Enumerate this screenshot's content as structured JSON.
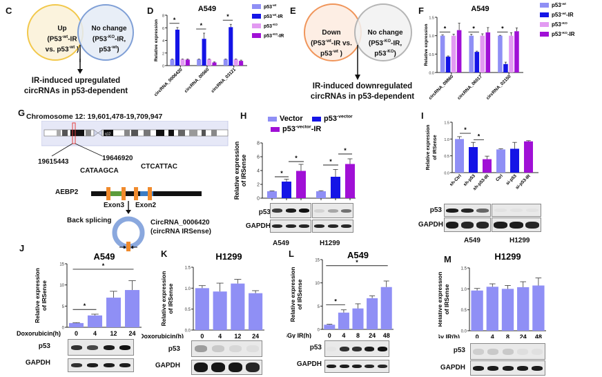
{
  "panel_labels": {
    "C": "C",
    "D": "D",
    "E": "E",
    "F": "F",
    "G": "G",
    "H": "H",
    "I": "I",
    "J": "J",
    "K": "K",
    "L": "L",
    "M": "M"
  },
  "colors": {
    "p53_wt": "#8f8ff5",
    "p53_wt_ir": "#1414e6",
    "p53_ko": "#e29af2",
    "p53_ko_ir": "#a010d6",
    "venn_up": "#f2c84b",
    "venn_nochange": "#7f9fd6",
    "venn_down": "#f0955a",
    "venn_gray": "#b5b5b5",
    "circ": "#8aa8de",
    "exon": "#f08a2c"
  },
  "venn_c": {
    "left_title": "Up",
    "left_sub1": "(P53",
    "left_sup1": "-wt",
    "left_sub1b": "-IR",
    "left_sub2": "vs. p53",
    "left_sup2": "-wt",
    "left_sub2b": " )",
    "right_title": "No change",
    "right_sub1": "(P53",
    "right_sup1": "-KO",
    "right_sub1b": "-IR,",
    "right_sub2": "p53",
    "right_sup2": "-wt",
    "right_sub2b": ")",
    "caption_line1": "IR-induced upregulated",
    "caption_line2": "circRNAs in p53-dependent"
  },
  "venn_e": {
    "left_title": "Down",
    "left_sub1": "(P53",
    "left_sup1": "-wt",
    "left_sub1b": "-IR vs.",
    "left_sub2": "p53",
    "left_sup2": "-wt",
    "left_sub2b": " )",
    "right_title": "No change",
    "right_sub1": "(P53",
    "right_sup1": "-KO",
    "right_sub1b": "-IR,",
    "right_sub2": "p53",
    "right_sup2": "-KO",
    "right_sub2b": ")",
    "caption_line1": "IR-induced downregulated",
    "caption_line2": "circRNAs in p53-dependent"
  },
  "panel_g": {
    "chromosome": "Chromosome 12: 19,601,478-19,709,947",
    "band_label": "q12",
    "start": "19615443",
    "end": "19646920",
    "seq_left": "CATAAGCA",
    "seq_right": "CTCATTAC",
    "gene": "AEBP2",
    "exon3": "Exon3",
    "exon2": "Exon2",
    "back_splicing": "Back splicing",
    "circ_name": "CircRNA_0006420",
    "circ_alias": "(circRNA IRSense)"
  },
  "blots": {
    "p53": "p53",
    "gapdh": "GAPDH",
    "a549": "A549",
    "h1299": "H1299"
  },
  "chart_data": [
    {
      "id": "D",
      "type": "bar",
      "title": "A549",
      "ylabel": "Relative expression",
      "ylim": [
        0,
        8
      ],
      "yticks": [
        "0",
        "2",
        "4",
        "6",
        "8"
      ],
      "categories": [
        "circRNA_0006420",
        "circRNA_00560",
        "circRNA_03121"
      ],
      "legend_position": "right",
      "series": [
        {
          "name": "p53",
          "sup": "-wt",
          "suffix": "",
          "color_key": "p53_wt",
          "values": [
            1.0,
            1.0,
            1.0
          ],
          "errors": [
            0.05,
            0.05,
            0.05
          ]
        },
        {
          "name": "p53",
          "sup": "-wt",
          "suffix": "-IR",
          "color_key": "p53_wt_ir",
          "values": [
            5.7,
            4.25,
            6.1
          ],
          "errors": [
            0.35,
            0.9,
            0.45
          ]
        },
        {
          "name": "p53",
          "sup": "-KO",
          "suffix": "",
          "color_key": "p53_ko",
          "values": [
            1.0,
            1.0,
            1.0
          ],
          "errors": [
            0.05,
            0.05,
            0.05
          ]
        },
        {
          "name": "p53",
          "sup": "-KO",
          "suffix": "-IR",
          "color_key": "p53_ko_ir",
          "values": [
            0.95,
            0.5,
            0.75
          ],
          "errors": [
            0.1,
            0.08,
            0.12
          ]
        }
      ],
      "significance": [
        "*",
        "*",
        "*"
      ]
    },
    {
      "id": "F",
      "type": "bar",
      "title": "A549",
      "ylabel": "Relative expression",
      "ylim": [
        0,
        1.5
      ],
      "yticks": [
        "0.0",
        "0.5",
        "1.0",
        "1.5"
      ],
      "categories": [
        "circRNA_09860",
        "circRNA_06017",
        "circRNA_02150"
      ],
      "legend_position": "right",
      "series": [
        {
          "name": "p53",
          "sup": "-wt",
          "suffix": "",
          "color_key": "p53_wt",
          "values": [
            1.0,
            1.0,
            1.0
          ],
          "errors": [
            0.02,
            0.04,
            0.01
          ]
        },
        {
          "name": "p53",
          "sup": "-wt",
          "suffix": "-IR",
          "color_key": "p53_wt_ir",
          "values": [
            0.43,
            0.56,
            0.23
          ],
          "errors": [
            0.02,
            0.02,
            0.05
          ]
        },
        {
          "name": "p53",
          "sup": "-KO",
          "suffix": "",
          "color_key": "p53_ko",
          "values": [
            1.0,
            1.0,
            1.0
          ],
          "errors": [
            0.04,
            0.05,
            0.08
          ]
        },
        {
          "name": "p53",
          "sup": "-KO",
          "suffix": "-IR",
          "color_key": "p53_ko_ir",
          "values": [
            1.15,
            1.09,
            1.12
          ],
          "errors": [
            0.19,
            0.13,
            0.09
          ]
        }
      ],
      "significance": [
        "*",
        "*",
        "*"
      ]
    },
    {
      "id": "H",
      "type": "bar",
      "title": "",
      "ylabel": "Relative expression of IRSense",
      "ylabel_line1": "Relative expression",
      "ylabel_line2": "of IRSense",
      "ylim": [
        0,
        8
      ],
      "yticks": [
        "0",
        "2",
        "4",
        "6",
        "8"
      ],
      "groups": [
        "A549",
        "H1299"
      ],
      "legend": [
        {
          "name": "Vector",
          "sup": "",
          "suffix": "",
          "color_key": "p53_wt"
        },
        {
          "name": "p53",
          "sup": "-vector",
          "suffix": "",
          "color_key": "p53_wt_ir"
        },
        {
          "name": "p53",
          "sup": "-vector",
          "suffix": "-IR",
          "color_key": "p53_ko_ir"
        }
      ],
      "bars": [
        {
          "group": "A549",
          "series": "Vector",
          "color_key": "p53_wt",
          "value": 1.0,
          "error": 0.05
        },
        {
          "group": "A549",
          "series": "p53-vector",
          "color_key": "p53_wt_ir",
          "value": 2.4,
          "error": 0.35
        },
        {
          "group": "A549",
          "series": "p53-vector-IR",
          "color_key": "p53_ko_ir",
          "value": 3.95,
          "error": 0.95
        },
        {
          "group": "H1299",
          "series": "Vector",
          "color_key": "p53_wt",
          "value": 1.0,
          "error": 0.08
        },
        {
          "group": "H1299",
          "series": "p53-vector",
          "color_key": "p53_wt_ir",
          "value": 3.1,
          "error": 1.05
        },
        {
          "group": "H1299",
          "series": "p53-vector-IR",
          "color_key": "p53_ko_ir",
          "value": 4.95,
          "error": 0.75
        }
      ],
      "significance": [
        "*",
        "*",
        "*",
        "*"
      ]
    },
    {
      "id": "I",
      "type": "bar",
      "title": "",
      "ylabel_line1": "Relative expression",
      "ylabel_line2": "of IRSense",
      "ylim": [
        0,
        1.5
      ],
      "yticks": [
        "0.0",
        "0.5",
        "1.0",
        "1.5"
      ],
      "categories": [
        "sh-Ctrl",
        "sh-p53",
        "sh-p53-IR",
        "Ctrl",
        "si-p53",
        "si-p53-IR"
      ],
      "color_keys": [
        "p53_wt",
        "p53_wt_ir",
        "p53_ko_ir",
        "p53_wt",
        "p53_wt_ir",
        "p53_ko_ir"
      ],
      "values": [
        1.0,
        0.76,
        0.4,
        0.69,
        0.71,
        0.93
      ],
      "errors": [
        0.07,
        0.14,
        0.09,
        0.02,
        0.19,
        0.02
      ],
      "significance": [
        "*",
        "*"
      ]
    },
    {
      "id": "J",
      "type": "bar",
      "title": "A549",
      "ylabel_line1": "Relative expression",
      "ylabel_line2": "of IRSense",
      "xlabel": "Doxorubicin(h)",
      "ylim": [
        0,
        15
      ],
      "yticks": [
        "0",
        "5",
        "10",
        "15"
      ],
      "categories": [
        "0",
        "4",
        "12",
        "24"
      ],
      "values": [
        1.0,
        2.8,
        7.0,
        8.8
      ],
      "errors": [
        0.1,
        0.3,
        1.5,
        2.2
      ],
      "significance": [
        "*",
        "*"
      ]
    },
    {
      "id": "K",
      "type": "bar",
      "title": "H1299",
      "ylabel_line1": "Relative expression",
      "ylabel_line2": "of IRSense",
      "xlabel": "Doxorubicin(h)",
      "ylim": [
        0,
        1.5
      ],
      "yticks": [
        "0.0",
        "0.5",
        "1.0",
        "1.5"
      ],
      "categories": [
        "0",
        "4",
        "12",
        "24"
      ],
      "values": [
        1.0,
        0.92,
        1.11,
        0.88
      ],
      "errors": [
        0.06,
        0.2,
        0.1,
        0.06
      ],
      "significance": []
    },
    {
      "id": "L",
      "type": "bar",
      "title": "A549",
      "ylabel_line1": "Relative expression",
      "ylabel_line2": "of IRSense",
      "xlabel": "4Gy IR(h)",
      "ylim": [
        0,
        15
      ],
      "yticks": [
        "0",
        "5",
        "10",
        "15"
      ],
      "categories": [
        "0",
        "4",
        "8",
        "24",
        "48"
      ],
      "values": [
        1.0,
        3.6,
        4.5,
        6.7,
        9.1
      ],
      "errors": [
        0.1,
        0.6,
        1.0,
        0.5,
        1.3
      ],
      "significance": [
        "*",
        "*"
      ]
    },
    {
      "id": "M",
      "type": "bar",
      "title": "H1299",
      "ylabel_line1": "Relative expression",
      "ylabel_line2": "of IRSense",
      "xlabel": "4Gy IR(h)",
      "ylim": [
        0,
        1.5
      ],
      "yticks": [
        "0.0",
        "0.5",
        "1.0",
        "1.5"
      ],
      "categories": [
        "0",
        "4",
        "8",
        "24",
        "48"
      ],
      "values": [
        0.96,
        1.05,
        1.0,
        1.04,
        1.08
      ],
      "errors": [
        0.05,
        0.07,
        0.08,
        0.13,
        0.18
      ],
      "significance": []
    }
  ]
}
